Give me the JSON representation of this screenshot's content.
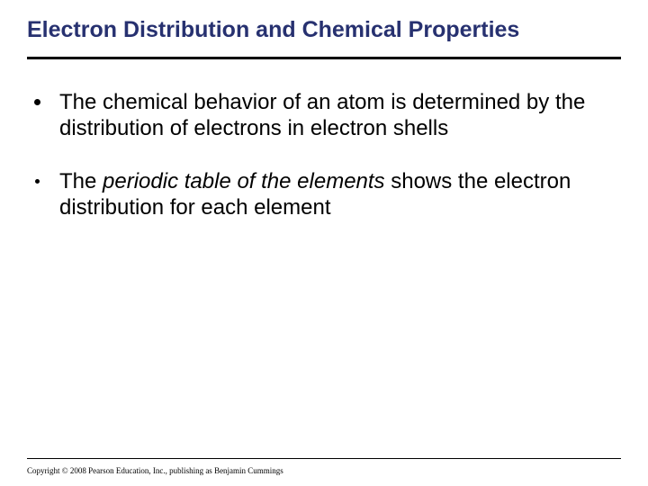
{
  "title": "Electron Distribution and Chemical Properties",
  "bullets": [
    {
      "pre": "The chemical behavior of an atom is determined by the distribution of electrons in electron shells",
      "em": "",
      "post": ""
    },
    {
      "pre": "The ",
      "em": "periodic table of the elements",
      "post": " shows the electron distribution for each element"
    }
  ],
  "copyright": "Copyright © 2008 Pearson Education, Inc., publishing as Benjamin Cummings",
  "styles": {
    "title_color": "#273170",
    "rule_color": "#000000",
    "text_color": "#000000",
    "background": "#ffffff",
    "title_fontsize": 25,
    "body_fontsize": 24,
    "copyright_fontsize": 9
  }
}
